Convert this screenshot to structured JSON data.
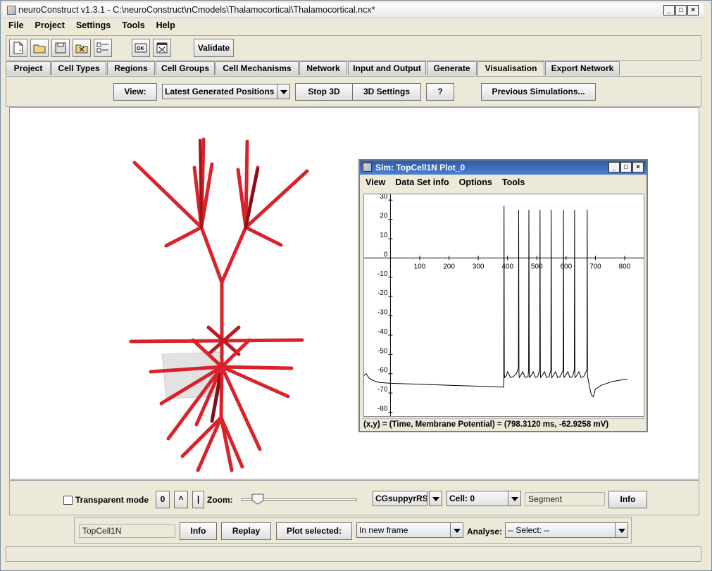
{
  "window": {
    "title": "neuroConstruct v1.3.1 - C:\\neuroConstruct\\nCmodels\\Thalamocortical\\Thalamocortical.ncx*",
    "controls": {
      "minimize": "_",
      "maximize": "□",
      "close": "×"
    }
  },
  "menu": [
    "File",
    "Project",
    "Settings",
    "Tools",
    "Help"
  ],
  "toolbar": {
    "validate_label": "Validate"
  },
  "tabs": [
    "Project",
    "Cell Types",
    "Regions",
    "Cell Groups",
    "Cell Mechanisms",
    "Network",
    "Input and Output",
    "Generate",
    "Visualisation",
    "Export Network"
  ],
  "active_tab": "Visualisation",
  "vis_toolbar": {
    "view_label": "View:",
    "view_selected": "Latest Generated Positions",
    "stop3d_label": "Stop 3D",
    "settings3d_label": "3D Settings",
    "help_label": "?",
    "prev_sims_label": "Previous Simulations..."
  },
  "plot_window": {
    "title": "Sim: TopCell1N Plot_0",
    "menu": [
      "View",
      "Data Set info",
      "Options",
      "Tools"
    ],
    "status": "(x,y) = (Time, Membrane Potential) = (798.3120 ms, -62.9258 mV)"
  },
  "chart_data": {
    "type": "line",
    "title": "",
    "xlabel": "",
    "ylabel": "",
    "xlim": [
      -90,
      865
    ],
    "ylim": [
      -82,
      33
    ],
    "x_ticks": [
      100,
      200,
      300,
      400,
      500,
      600,
      700,
      800
    ],
    "y_ticks": [
      30,
      20,
      10,
      0,
      -10,
      -20,
      -30,
      -40,
      -50,
      -60,
      -70,
      -80
    ],
    "grid": false,
    "line_color": "#000000",
    "series": [
      {
        "name": "",
        "x": [
          -90,
          -87,
          -83,
          -79,
          -72,
          -60,
          -40,
          0,
          100,
          200,
          300,
          387,
          387,
          388,
          389,
          390,
          396,
          400,
          410,
          420,
          430,
          437,
          438,
          439,
          440,
          445,
          452,
          460,
          470,
          472,
          473,
          474,
          475,
          480,
          488,
          495,
          503,
          510,
          511,
          512,
          513,
          518,
          526,
          533,
          542,
          548,
          549,
          550,
          551,
          556,
          564,
          571,
          580,
          590,
          591,
          592,
          593,
          598,
          606,
          613,
          622,
          628,
          629,
          630,
          631,
          636,
          644,
          651,
          660,
          671,
          672,
          673,
          674,
          679,
          686,
          693,
          700,
          720,
          760,
          798,
          810
        ],
        "y": [
          -61,
          -60.5,
          -60,
          -61,
          -62.5,
          -63.5,
          -64.5,
          -65,
          -65.5,
          -66,
          -66.5,
          -67,
          -56,
          27,
          -60,
          -62,
          -61,
          -59,
          -62,
          -61.5,
          -60,
          -57,
          25,
          -60,
          -62,
          -61,
          -59,
          -62,
          -61.5,
          -58,
          25,
          -60,
          -62,
          -61,
          -59,
          -62,
          -61.5,
          -58,
          25,
          -60,
          -62,
          -61,
          -59,
          -62,
          -61.5,
          -58,
          25,
          -60,
          -62,
          -61,
          -59,
          -62,
          -61.5,
          -58,
          25,
          -60,
          -62,
          -61,
          -59,
          -62,
          -61.5,
          -58,
          25,
          -60,
          -62,
          -61,
          -59,
          -62,
          -61.5,
          -58,
          25,
          -60,
          -62,
          -66,
          -71,
          -72,
          -68,
          -66,
          -64,
          -63,
          -62.9
        ]
      }
    ]
  },
  "bottom": {
    "transparent_label": "Transparent mode",
    "zoom_buttons": [
      "0",
      "^",
      "|"
    ],
    "zoom_label": "Zoom:",
    "zoom_value": 0.1,
    "cell_group_selected": "CGsuppyrRS",
    "cell_selected": "Cell: 0",
    "segment_field": "Segment",
    "info_label": "Info",
    "cell_name_field": "TopCell1N",
    "info2_label": "Info",
    "replay_label": "Replay",
    "plot_selected_label": "Plot selected:",
    "plot_frame_selected": "In new frame",
    "analyse_label": "Analyse:",
    "analyse_selected": "-- Select: --"
  }
}
